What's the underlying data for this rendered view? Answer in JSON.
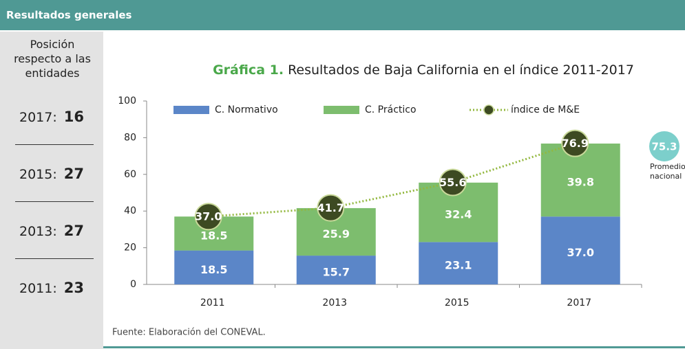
{
  "header": {
    "title": "Resultados generales"
  },
  "ranking": {
    "title": "Posición respecto a las entidades",
    "items": [
      {
        "year": "2017:",
        "position": 16
      },
      {
        "year": "2015:",
        "position": 27
      },
      {
        "year": "2013:",
        "position": 27
      },
      {
        "year": "2011:",
        "position": 23
      }
    ]
  },
  "chart_data": {
    "type": "stacked_bar_line",
    "figure_label": "Gráfica 1.",
    "title": "Resultados de Baja California en el índice 2011-2017",
    "categories": [
      "2011",
      "2013",
      "2015",
      "2017"
    ],
    "series": [
      {
        "name": "C. Normativo",
        "color": "#5b86c8",
        "kind": "bar",
        "values": [
          18.5,
          15.7,
          23.1,
          37.0
        ],
        "value_labels": [
          "18.5",
          "15.7",
          "23.1",
          "37.0"
        ]
      },
      {
        "name": "C. Práctico",
        "color": "#7dbd6e",
        "kind": "bar",
        "values": [
          18.5,
          25.9,
          32.4,
          39.8
        ],
        "value_labels": [
          "18.5",
          "25.9",
          "32.4",
          "39.8"
        ]
      },
      {
        "name": "índice de M&E",
        "color": "#93b83f",
        "kind": "line",
        "values": [
          37.0,
          41.7,
          55.6,
          76.9
        ],
        "value_labels": [
          "37.0",
          "41.7",
          "55.6",
          "76.9"
        ]
      }
    ],
    "ylim": [
      0,
      100
    ],
    "yticks": [
      0,
      20,
      40,
      60,
      80,
      100
    ],
    "reference": {
      "value": 75.3,
      "label": "Promedio nacional",
      "color": "#7ccfcb"
    },
    "source": "Fuente: Elaboración del CONEVAL."
  }
}
